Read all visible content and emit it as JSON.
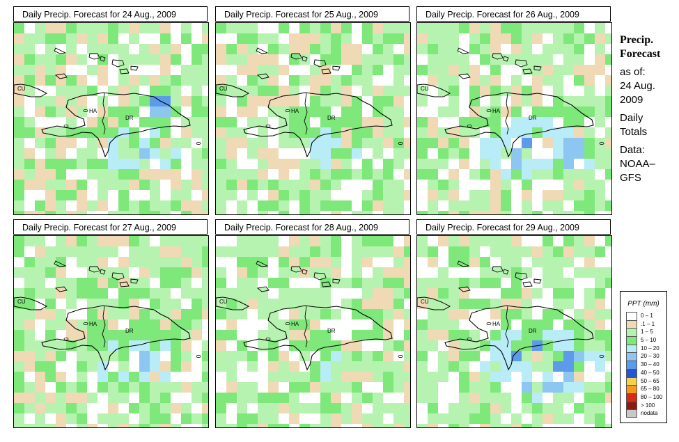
{
  "panels": [
    {
      "title": "Daily Precip. Forecast for  24 Aug., 2009",
      "seed": 11,
      "wet": 0.9
    },
    {
      "title": "Daily Precip. Forecast for  25 Aug., 2009",
      "seed": 23,
      "wet": 0.8
    },
    {
      "title": "Daily Precip. Forecast for  26 Aug., 2009",
      "seed": 37,
      "wet": 1.3
    },
    {
      "title": "Daily Precip. Forecast for  27 Aug., 2009",
      "seed": 41,
      "wet": 0.9
    },
    {
      "title": "Daily Precip. Forecast for  28 Aug., 2009",
      "seed": 53,
      "wet": 0.7
    },
    {
      "title": "Daily Precip. Forecast for  29 Aug., 2009",
      "seed": 67,
      "wet": 1.5
    }
  ],
  "map_labels": {
    "cu": "CU",
    "ha": "HA",
    "dr": "DR"
  },
  "info": {
    "line1": "Precip.",
    "line2": "Forecast",
    "asof": "as of:",
    "date1": "24 Aug.",
    "date2": "2009",
    "daily": "Daily",
    "totals": "Totals",
    "data_label": "Data:",
    "source1": "NOAA–",
    "source2": "GFS"
  },
  "legend": {
    "title": "PPT (mm)",
    "items": [
      {
        "label": "0 – 1",
        "color": "#ffffff"
      },
      {
        "label": ".1 – 1",
        "color": "#f0d9b5"
      },
      {
        "label": "1 – 5",
        "color": "#b7f3b0"
      },
      {
        "label": "5 – 10",
        "color": "#7ee87a"
      },
      {
        "label": "10 – 20",
        "color": "#b8ecf6"
      },
      {
        "label": "20 – 30",
        "color": "#8ec6f2"
      },
      {
        "label": "30 – 40",
        "color": "#5c9bea"
      },
      {
        "label": "40 – 50",
        "color": "#2356d6"
      },
      {
        "label": "50 – 65",
        "color": "#f5d24a"
      },
      {
        "label": "65 – 80",
        "color": "#f59a1c"
      },
      {
        "label": "80 – 100",
        "color": "#d62b15"
      },
      {
        "label": "> 100",
        "color": "#8b1a10"
      },
      {
        "label": "nodata",
        "color": "#c8c8c8"
      }
    ]
  }
}
